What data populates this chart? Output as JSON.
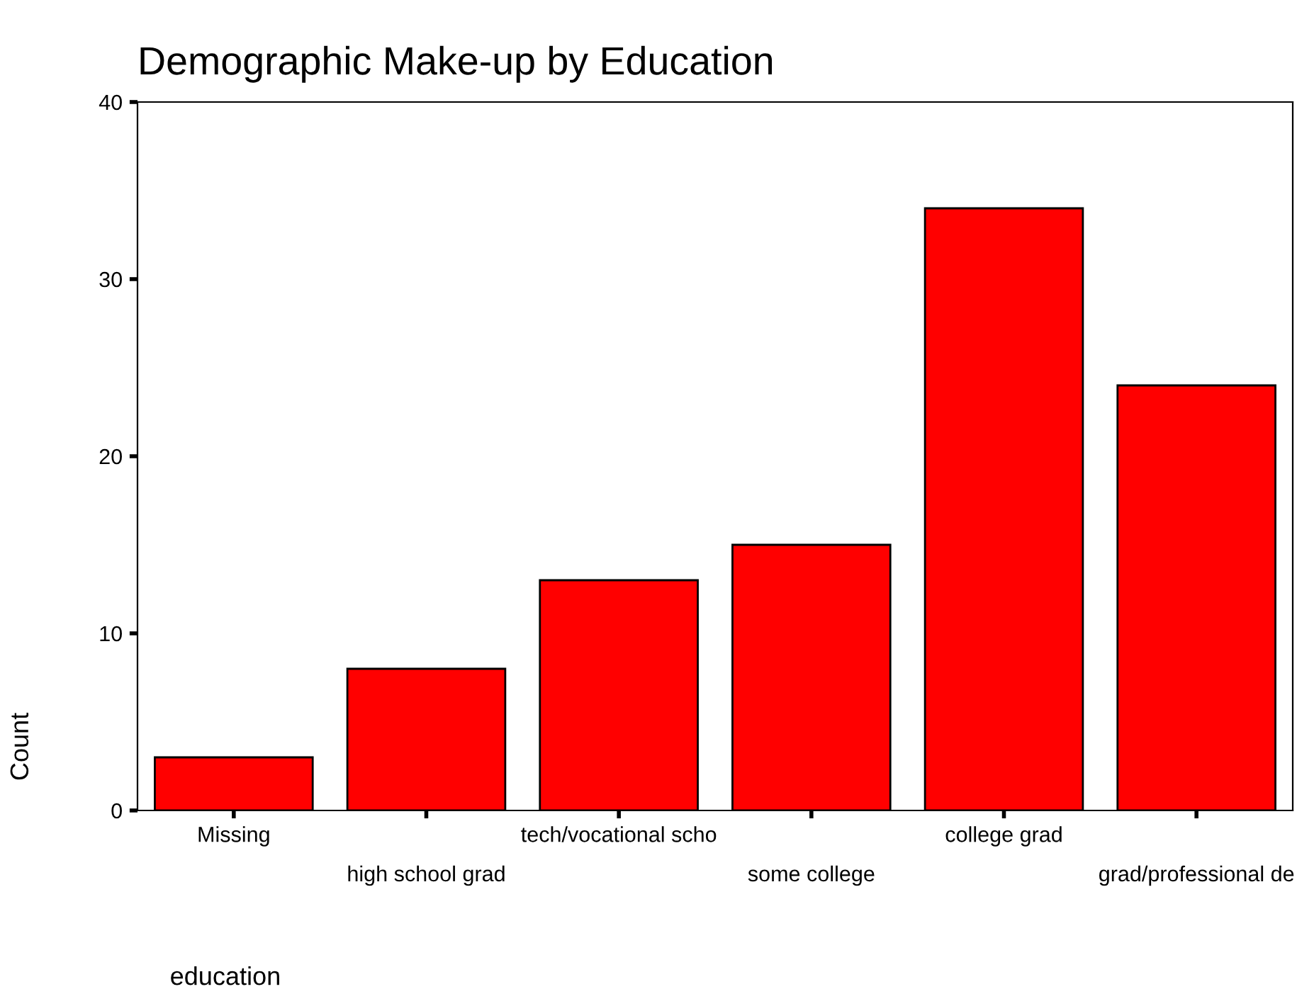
{
  "chart_data": {
    "type": "bar",
    "title": "Demographic Make-up by Education",
    "xlabel": "education",
    "ylabel": "Count",
    "categories": [
      "Missing",
      "high school grad",
      "tech/vocational scho",
      "some college",
      "college grad",
      "grad/professional de"
    ],
    "values": [
      3,
      8,
      13,
      15,
      34,
      24
    ],
    "color": "#ff0000",
    "ylim": [
      0,
      40
    ],
    "yticks": [
      0,
      10,
      20,
      30,
      40
    ],
    "grid": false,
    "legend": false
  }
}
